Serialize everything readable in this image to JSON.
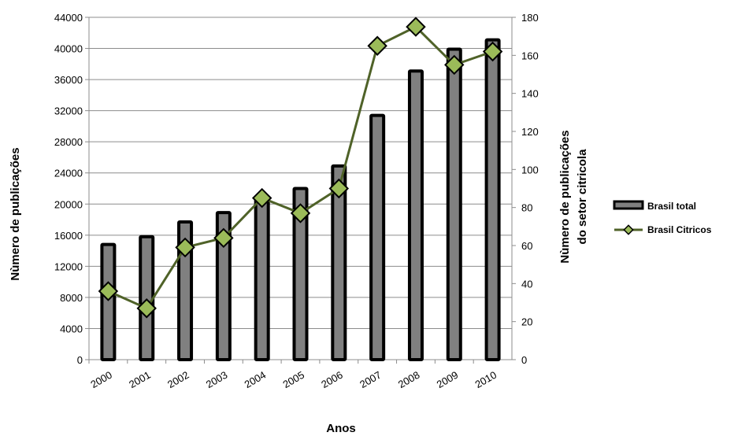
{
  "chart_data": {
    "type": "bar+line",
    "xlabel": "Anos",
    "ylabel": "Nùmero de publicações",
    "y2label": [
      "Nùmero de publicações",
      "do setor citricola"
    ],
    "categories": [
      "2000",
      "2001",
      "2002",
      "2003",
      "2004",
      "2005",
      "2006",
      "2007",
      "2008",
      "2009",
      "2010"
    ],
    "ylim": [
      0,
      44000
    ],
    "yticks": [
      "0",
      "4000",
      "8000",
      "12000",
      "16000",
      "20000",
      "24000",
      "28000",
      "32000",
      "36000",
      "40000",
      "44000"
    ],
    "y2lim": [
      0,
      180
    ],
    "y2ticks": [
      "0",
      "20",
      "40",
      "60",
      "80",
      "100",
      "120",
      "140",
      "160",
      "180"
    ],
    "grid": true,
    "legend_position": "right",
    "series": [
      {
        "name": "Brasil total",
        "type": "bar",
        "axis": "left",
        "color": "#808080",
        "values": [
          14800,
          15800,
          17700,
          18900,
          20800,
          22000,
          24900,
          31400,
          37100,
          39900,
          41100
        ]
      },
      {
        "name": "Brasil Citricos",
        "type": "line",
        "axis": "right",
        "color": "#4f6228",
        "marker_color": "#9bbb59",
        "values": [
          36,
          27,
          59,
          64,
          85,
          77,
          90,
          165,
          175,
          155,
          162
        ]
      }
    ]
  }
}
